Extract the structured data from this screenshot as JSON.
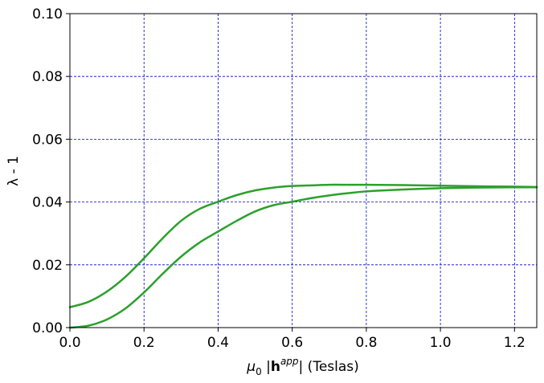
{
  "chart_data": {
    "type": "line",
    "title": "",
    "xlabel": {
      "mu": "μ",
      "sub": "0",
      "bar_open": " |",
      "h": "h",
      "sup": "app",
      "bar_close": "|",
      "units": " (Teslas)"
    },
    "ylabel": "λ - 1",
    "xlim": [
      0.0,
      1.26
    ],
    "ylim": [
      0.0,
      0.1
    ],
    "xticks": [
      0.0,
      0.2,
      0.4,
      0.6,
      0.8,
      1.0,
      1.2
    ],
    "yticks": [
      0.0,
      0.02,
      0.04,
      0.06,
      0.08,
      0.1
    ],
    "xtick_labels": [
      "0.0",
      "0.2",
      "0.4",
      "0.6",
      "0.8",
      "1.0",
      "1.2"
    ],
    "ytick_labels": [
      "0.00",
      "0.02",
      "0.04",
      "0.06",
      "0.08",
      "0.10"
    ],
    "grid": true,
    "grid_color": "#0000cc",
    "line_color": "#2ca02c",
    "series": [
      {
        "x": [
          0.0,
          0.05,
          0.1,
          0.15,
          0.2,
          0.25,
          0.3,
          0.35,
          0.4,
          0.45,
          0.5,
          0.55,
          0.6,
          0.65,
          0.7,
          0.75,
          0.8,
          0.9,
          1.0,
          1.1,
          1.2,
          1.26
        ],
        "y": [
          0.0065,
          0.0082,
          0.0115,
          0.0162,
          0.0221,
          0.0284,
          0.034,
          0.0378,
          0.0401,
          0.0422,
          0.0437,
          0.0446,
          0.0451,
          0.0453,
          0.0455,
          0.0455,
          0.0455,
          0.0454,
          0.0452,
          0.045,
          0.0449,
          0.0448
        ]
      },
      {
        "x": [
          0.0,
          0.05,
          0.1,
          0.15,
          0.2,
          0.25,
          0.3,
          0.35,
          0.4,
          0.45,
          0.5,
          0.55,
          0.6,
          0.65,
          0.7,
          0.75,
          0.8,
          0.9,
          1.0,
          1.1,
          1.2,
          1.26
        ],
        "y": [
          0.0,
          0.0006,
          0.0026,
          0.0061,
          0.0112,
          0.0171,
          0.0226,
          0.0271,
          0.0306,
          0.034,
          0.037,
          0.039,
          0.0401,
          0.0412,
          0.0421,
          0.0428,
          0.0434,
          0.044,
          0.0444,
          0.0446,
          0.0447,
          0.0447
        ]
      }
    ]
  }
}
